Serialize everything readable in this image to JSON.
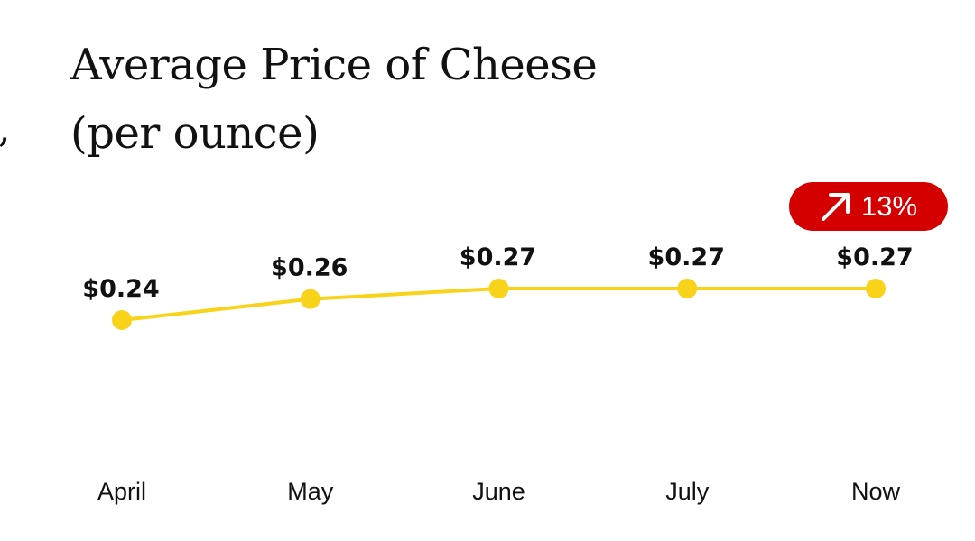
{
  "title_line1": "Average Price of Cheese",
  "title_line2": "(per ounce)",
  "stray_mark": ",",
  "badge": {
    "icon": "arrow-up-right-icon",
    "text": "13%",
    "color": "#d40000"
  },
  "chart_data": {
    "type": "line",
    "title": "Average Price of Cheese (per ounce)",
    "categories": [
      "April",
      "May",
      "June",
      "July",
      "Now"
    ],
    "values": [
      0.24,
      0.26,
      0.27,
      0.27,
      0.27
    ],
    "value_labels": [
      "$0.24",
      "$0.26",
      "$0.27",
      "$0.27",
      "$0.27"
    ],
    "xlabel": "",
    "ylabel": "",
    "grid": false,
    "line_color": "#f9d31a",
    "marker_color": "#f9d31a"
  }
}
